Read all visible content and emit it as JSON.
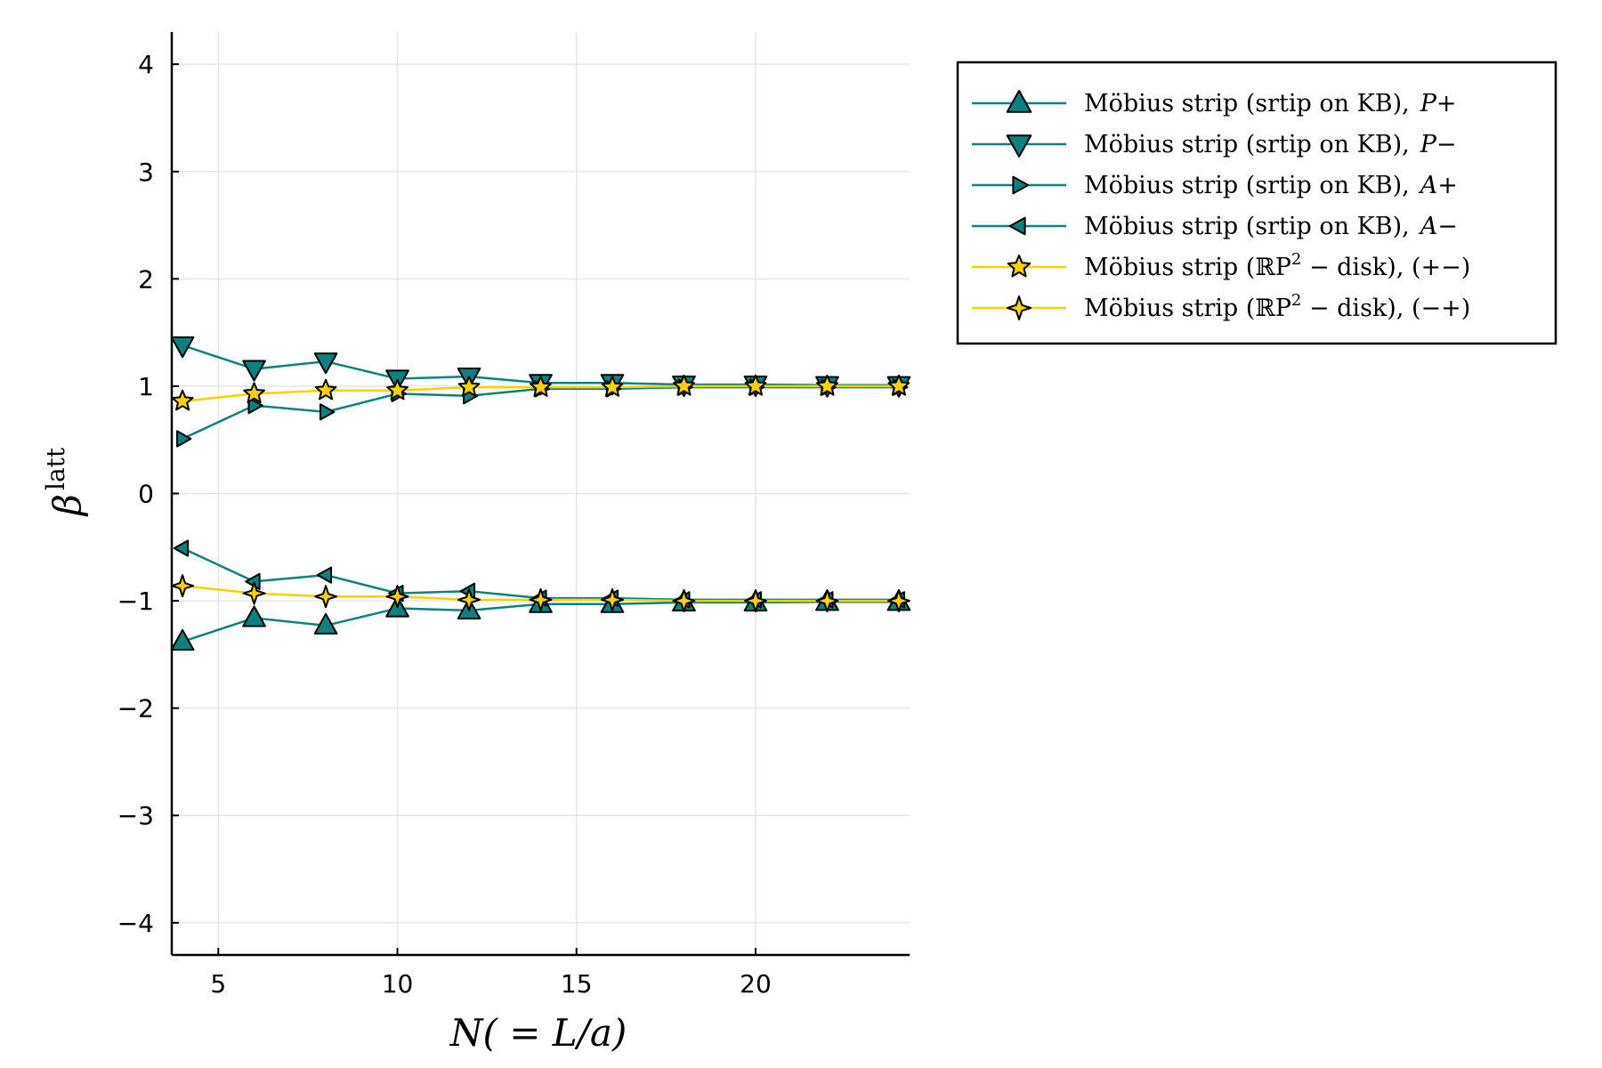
{
  "chart_data": {
    "type": "line",
    "title": "",
    "xlabel": "N( = L/a)",
    "ylabel": "β",
    "ylabel_sup": "latt",
    "xlim": [
      3.7,
      24.3
    ],
    "ylim": [
      -4.3,
      4.3
    ],
    "xticks": [
      5,
      10,
      15,
      20
    ],
    "yticks": [
      -4,
      -3,
      -2,
      -1,
      0,
      1,
      2,
      3,
      4
    ],
    "ytick_labels": [
      "−4",
      "−3",
      "−2",
      "−1",
      "0",
      "1",
      "2",
      "3",
      "4"
    ],
    "grid": true,
    "legend_position": "outside-top-right",
    "x": [
      4,
      6,
      8,
      10,
      12,
      14,
      16,
      18,
      20,
      22,
      24
    ],
    "series": [
      {
        "name": "Möbius strip (srtip on KB),  P+",
        "label_main": "Möbius strip (srtip on KB),",
        "label_tail": "P+",
        "marker": "triangle-up",
        "color": "#0f7f7f",
        "values": [
          -1.38,
          -1.16,
          -1.23,
          -1.07,
          -1.09,
          -1.03,
          -1.03,
          -1.015,
          -1.015,
          -1.01,
          -1.01
        ]
      },
      {
        "name": "Möbius strip (srtip on KB),  P−",
        "label_main": "Möbius strip (srtip on KB),",
        "label_tail": "P−",
        "marker": "triangle-down",
        "color": "#0f7f7f",
        "values": [
          1.38,
          1.16,
          1.23,
          1.07,
          1.09,
          1.03,
          1.03,
          1.015,
          1.015,
          1.01,
          1.01
        ]
      },
      {
        "name": "Möbius strip (srtip on KB),  A+",
        "label_main": "Möbius strip (srtip on KB),",
        "label_tail": "A+",
        "marker": "triangle-right",
        "color": "#0f7f7f",
        "values": [
          0.51,
          0.82,
          0.76,
          0.93,
          0.91,
          0.975,
          0.975,
          0.99,
          0.99,
          0.99,
          0.99
        ]
      },
      {
        "name": "Möbius strip (srtip on KB),  A−",
        "label_main": "Möbius strip (srtip on KB),",
        "label_tail": "A−",
        "marker": "triangle-left",
        "color": "#0f7f7f",
        "values": [
          -0.51,
          -0.82,
          -0.76,
          -0.93,
          -0.91,
          -0.975,
          -0.975,
          -0.99,
          -0.99,
          -0.99,
          -0.99
        ]
      },
      {
        "name": "Möbius strip (ℝP² − disk), (+−)",
        "label_main": "Möbius strip (ℝP",
        "label_sup": "2",
        "label_tail": " − disk), (+−)",
        "marker": "star5",
        "color": "#f7d200",
        "values": [
          0.86,
          0.93,
          0.96,
          0.96,
          0.99,
          0.99,
          0.99,
          1.0,
          1.0,
          1.0,
          1.0
        ]
      },
      {
        "name": "Möbius strip (ℝP² − disk), (−+)",
        "label_main": "Möbius strip (ℝP",
        "label_sup": "2",
        "label_tail": " − disk), (−+)",
        "marker": "star4",
        "color": "#f7d200",
        "values": [
          -0.86,
          -0.93,
          -0.96,
          -0.96,
          -0.99,
          -0.99,
          -0.99,
          -1.0,
          -1.0,
          -1.0,
          -1.0
        ]
      }
    ]
  }
}
